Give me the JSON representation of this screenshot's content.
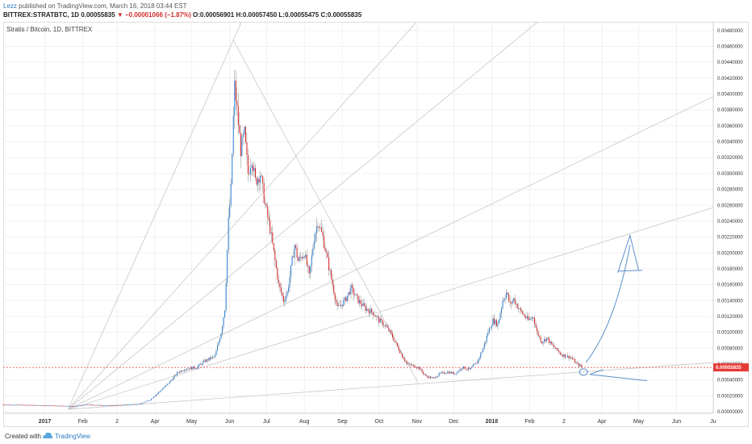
{
  "header": {
    "author": "Lezz",
    "published": "published on TradingView.com, March 16, 2018 03:44 EST",
    "symbol": "BITTREX:STRATBTC, 1D",
    "last": "0.00055835",
    "change": "−0.00001066 (−1.87%)",
    "open": "O:0.00056901",
    "high": "H:0.00057450",
    "low": "L:0.00055475",
    "close": "C:0.00055835"
  },
  "footer": {
    "created": "Created with",
    "brand": "TradingView"
  },
  "colors": {
    "up": "#2f7fd8",
    "down": "#d9262c",
    "grid": "#f0f0f0",
    "drawing": "#c8c8c8",
    "price_line": "#e53935",
    "arrow": "#5b8fc7"
  },
  "chart_data": {
    "type": "candlestick",
    "title": "Stratis / Bitcoin, 1D, BITTREX",
    "y_ticks": [
      "0.00480000",
      "0.00460000",
      "0.00440000",
      "0.00420000",
      "0.00400000",
      "0.00380000",
      "0.00360000",
      "0.00340000",
      "0.00320000",
      "0.00300000",
      "0.00280000",
      "0.00260000",
      "0.00240000",
      "0.00220000",
      "0.00200000",
      "0.00180000",
      "0.00160000",
      "0.00140000",
      "0.00120000",
      "0.00100000",
      "0.00080000",
      "0.00060000",
      "0.00040000",
      "0.00020000",
      "0.00000000"
    ],
    "ylim": [
      -2e-05,
      0.0049
    ],
    "x_ticks": [
      {
        "label": "2017",
        "date": "2017-01-01",
        "bold": true
      },
      {
        "label": "Feb",
        "date": "2017-02-01"
      },
      {
        "label": "2",
        "date": "2017-03-01"
      },
      {
        "label": "Apr",
        "date": "2017-04-01"
      },
      {
        "label": "May",
        "date": "2017-05-01"
      },
      {
        "label": "Jun",
        "date": "2017-06-01"
      },
      {
        "label": "Jul",
        "date": "2017-07-01"
      },
      {
        "label": "Aug",
        "date": "2017-08-01"
      },
      {
        "label": "Sep",
        "date": "2017-09-01"
      },
      {
        "label": "Oct",
        "date": "2017-10-01"
      },
      {
        "label": "Nov",
        "date": "2017-11-01"
      },
      {
        "label": "Dec",
        "date": "2017-12-01"
      },
      {
        "label": "2018",
        "date": "2018-01-01",
        "bold": true
      },
      {
        "label": "Feb",
        "date": "2018-02-01"
      },
      {
        "label": "2",
        "date": "2018-03-01"
      },
      {
        "label": "Apr",
        "date": "2018-04-01"
      },
      {
        "label": "May",
        "date": "2018-05-01"
      },
      {
        "label": "Jun",
        "date": "2018-06-01"
      },
      {
        "label": "Ju",
        "date": "2018-07-01"
      }
    ],
    "price_label": "0.00055835",
    "price_line_value": 0.00055835,
    "close_path": [
      [
        "2016-11-28",
        9e-05
      ],
      [
        "2016-12-15",
        8.5e-05
      ],
      [
        "2017-01-01",
        8e-05
      ],
      [
        "2017-01-15",
        7.5e-05
      ],
      [
        "2017-01-25",
        7e-05
      ],
      [
        "2017-02-05",
        9e-05
      ],
      [
        "2017-02-20",
        8e-05
      ],
      [
        "2017-03-05",
        8.5e-05
      ],
      [
        "2017-03-20",
        0.0001
      ],
      [
        "2017-03-28",
        0.00015
      ],
      [
        "2017-04-05",
        0.00026
      ],
      [
        "2017-04-12",
        0.00036
      ],
      [
        "2017-04-20",
        0.0005
      ],
      [
        "2017-04-26",
        0.00054
      ],
      [
        "2017-05-05",
        0.00056
      ],
      [
        "2017-05-12",
        0.00064
      ],
      [
        "2017-05-20",
        0.0007
      ],
      [
        "2017-05-25",
        0.001
      ],
      [
        "2017-05-28",
        0.0013
      ],
      [
        "2017-05-31",
        0.0024
      ],
      [
        "2017-06-02",
        0.0028
      ],
      [
        "2017-06-04",
        0.0037
      ],
      [
        "2017-06-05",
        0.0041
      ],
      [
        "2017-06-07",
        0.0038
      ],
      [
        "2017-06-10",
        0.0033
      ],
      [
        "2017-06-13",
        0.0035
      ],
      [
        "2017-06-16",
        0.003
      ],
      [
        "2017-06-19",
        0.0032
      ],
      [
        "2017-06-22",
        0.0029
      ],
      [
        "2017-06-26",
        0.003
      ],
      [
        "2017-06-30",
        0.0026
      ],
      [
        "2017-07-04",
        0.0023
      ],
      [
        "2017-07-08",
        0.0019
      ],
      [
        "2017-07-11",
        0.0016
      ],
      [
        "2017-07-15",
        0.0014
      ],
      [
        "2017-07-18",
        0.0015
      ],
      [
        "2017-07-21",
        0.0018
      ],
      [
        "2017-07-24",
        0.0021
      ],
      [
        "2017-07-27",
        0.0019
      ],
      [
        "2017-08-01",
        0.002
      ],
      [
        "2017-08-05",
        0.0017
      ],
      [
        "2017-08-09",
        0.0022
      ],
      [
        "2017-08-12",
        0.0024
      ],
      [
        "2017-08-16",
        0.0022
      ],
      [
        "2017-08-20",
        0.0019
      ],
      [
        "2017-08-24",
        0.0016
      ],
      [
        "2017-08-28",
        0.0013
      ],
      [
        "2017-09-03",
        0.0014
      ],
      [
        "2017-09-08",
        0.00155
      ],
      [
        "2017-09-14",
        0.0014
      ],
      [
        "2017-09-20",
        0.0013
      ],
      [
        "2017-09-26",
        0.00125
      ],
      [
        "2017-10-01",
        0.00115
      ],
      [
        "2017-10-05",
        0.0011
      ],
      [
        "2017-10-10",
        0.001
      ],
      [
        "2017-10-15",
        0.00085
      ],
      [
        "2017-10-20",
        0.0007
      ],
      [
        "2017-10-24",
        0.0006
      ],
      [
        "2017-10-28",
        0.00058
      ],
      [
        "2017-11-02",
        0.00056
      ],
      [
        "2017-11-08",
        0.00045
      ],
      [
        "2017-11-14",
        0.00042
      ],
      [
        "2017-11-20",
        0.00048
      ],
      [
        "2017-11-26",
        0.0005
      ],
      [
        "2017-12-02",
        0.00048
      ],
      [
        "2017-12-08",
        0.00056
      ],
      [
        "2017-12-14",
        0.00053
      ],
      [
        "2017-12-20",
        0.00062
      ],
      [
        "2017-12-25",
        0.0008
      ],
      [
        "2017-12-29",
        0.001
      ],
      [
        "2018-01-02",
        0.00115
      ],
      [
        "2018-01-06",
        0.0011
      ],
      [
        "2018-01-10",
        0.0014
      ],
      [
        "2018-01-13",
        0.0015
      ],
      [
        "2018-01-16",
        0.00135
      ],
      [
        "2018-01-19",
        0.00142
      ],
      [
        "2018-01-23",
        0.0013
      ],
      [
        "2018-01-27",
        0.00122
      ],
      [
        "2018-01-31",
        0.00115
      ],
      [
        "2018-02-04",
        0.0012
      ],
      [
        "2018-02-07",
        0.001
      ],
      [
        "2018-02-11",
        0.00088
      ],
      [
        "2018-02-15",
        0.00093
      ],
      [
        "2018-02-19",
        0.00084
      ],
      [
        "2018-02-23",
        0.00078
      ],
      [
        "2018-02-27",
        0.00072
      ],
      [
        "2018-03-03",
        0.0007
      ],
      [
        "2018-03-07",
        0.00068
      ],
      [
        "2018-03-11",
        0.00061
      ],
      [
        "2018-03-16",
        0.000558
      ]
    ]
  }
}
